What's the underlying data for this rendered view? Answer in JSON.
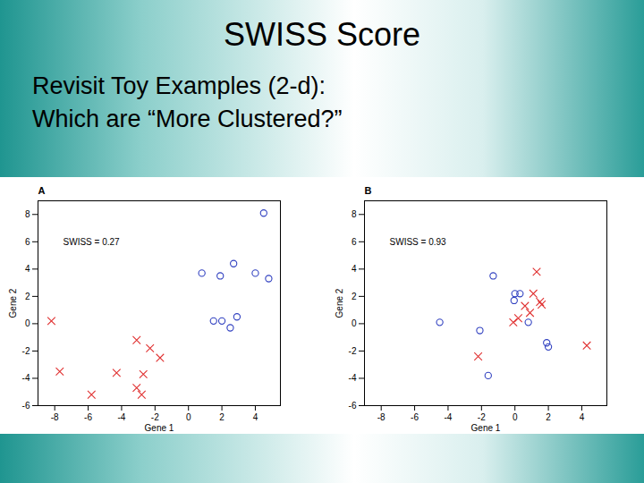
{
  "heading": "SWISS Score",
  "body": [
    "Revisit Toy Examples  (2-d):",
    "Which are “More Clustered?”"
  ],
  "chart_data": [
    {
      "type": "scatter",
      "title": "A",
      "xlabel": "Gene 1",
      "ylabel": "Gene 2",
      "xlim": [
        -9,
        5.5
      ],
      "ylim": [
        -6,
        9
      ],
      "xticks": [
        -8,
        -6,
        -4,
        -2,
        0,
        2,
        4
      ],
      "yticks": [
        -6,
        -4,
        -2,
        0,
        2,
        4,
        6,
        8
      ],
      "annotations": [
        {
          "text": "SWISS = 0.27",
          "x": -7.5,
          "y": 6
        }
      ],
      "series": [
        {
          "color": "#3040c0",
          "marker": "o",
          "x": [
            0.8,
            1.9,
            2.7,
            4.5,
            4.0,
            4.8,
            1.5,
            2.0,
            2.9,
            2.5
          ],
          "y": [
            3.7,
            3.5,
            4.4,
            8.1,
            3.7,
            3.3,
            0.2,
            0.2,
            0.5,
            -0.3
          ]
        },
        {
          "color": "#e03030",
          "marker": "x",
          "x": [
            -8.2,
            -7.7,
            -5.8,
            -4.3,
            -3.1,
            -2.3,
            -1.7,
            -2.7,
            -3.1,
            -2.8
          ],
          "y": [
            0.2,
            -3.5,
            -5.2,
            -3.6,
            -1.2,
            -1.8,
            -2.5,
            -3.7,
            -4.7,
            -5.2
          ]
        }
      ]
    },
    {
      "type": "scatter",
      "title": "B",
      "xlabel": "Gene 1",
      "ylabel": "Gene 2",
      "xlim": [
        -9,
        5.5
      ],
      "ylim": [
        -6,
        9
      ],
      "xticks": [
        -8,
        -6,
        -4,
        -2,
        0,
        2,
        4
      ],
      "yticks": [
        -6,
        -4,
        -2,
        0,
        2,
        4,
        6,
        8
      ],
      "annotations": [
        {
          "text": "SWISS = 0.93",
          "x": -7.5,
          "y": 6
        }
      ],
      "series": [
        {
          "color": "#3040c0",
          "marker": "o",
          "x": [
            -4.5,
            -2.1,
            -1.3,
            -1.6,
            0.0,
            0.3,
            -0.05,
            0.8,
            1.9,
            2.0
          ],
          "y": [
            0.1,
            -0.5,
            3.5,
            -3.8,
            2.2,
            2.2,
            1.7,
            0.1,
            -1.4,
            -1.7
          ]
        },
        {
          "color": "#e03030",
          "marker": "x",
          "x": [
            1.3,
            1.1,
            1.5,
            1.6,
            0.6,
            0.9,
            -0.1,
            0.2,
            -2.2,
            4.3
          ],
          "y": [
            3.8,
            2.2,
            1.6,
            1.4,
            1.3,
            0.8,
            0.1,
            0.4,
            -2.4,
            -1.6
          ]
        }
      ]
    }
  ]
}
